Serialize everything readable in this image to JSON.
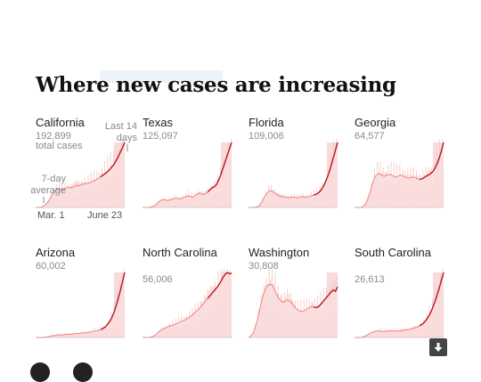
{
  "page": {
    "headline": "Where new cases are increasing",
    "annotations": {
      "last_14_days": "Last 14 days",
      "seven_day_average": "7-day average",
      "start_date": "Mar. 1",
      "end_date": "June 23",
      "total_cases": "total cases"
    },
    "colors": {
      "bars": "#f6c8c8",
      "area": "#fbe0e0",
      "last14_shade": "#efb0b0",
      "line": "#b8171b",
      "line_light": "#f08080",
      "axis": "#b0b0b0"
    },
    "icons": {
      "download": "download-icon"
    }
  },
  "chart_data": [
    {
      "type": "area",
      "state": "California",
      "total_cases": "192,899",
      "x_range": [
        "Mar. 1",
        "June 23"
      ],
      "series": [
        {
          "values": [
            0,
            0,
            0,
            0.01,
            0.03,
            0.06,
            0.1,
            0.16,
            0.22,
            0.26,
            0.28,
            0.28,
            0.27,
            0.28,
            0.3,
            0.31,
            0.3,
            0.31,
            0.33,
            0.34,
            0.33,
            0.35,
            0.36,
            0.37,
            0.37,
            0.38,
            0.4,
            0.41,
            0.43,
            0.45,
            0.47,
            0.5,
            0.52,
            0.55,
            0.58,
            0.62,
            0.66,
            0.72,
            0.78,
            0.85,
            0.92,
            1.0
          ]
        }
      ]
    },
    {
      "type": "area",
      "state": "Texas",
      "total_cases": "125,097",
      "x_range": [
        "Mar. 1",
        "June 23"
      ],
      "series": [
        {
          "values": [
            0,
            0,
            0,
            0,
            0.01,
            0.02,
            0.04,
            0.07,
            0.1,
            0.12,
            0.12,
            0.11,
            0.11,
            0.12,
            0.13,
            0.14,
            0.14,
            0.13,
            0.14,
            0.15,
            0.17,
            0.18,
            0.17,
            0.16,
            0.17,
            0.2,
            0.22,
            0.21,
            0.2,
            0.21,
            0.24,
            0.27,
            0.3,
            0.32,
            0.35,
            0.42,
            0.5,
            0.6,
            0.7,
            0.8,
            0.9,
            1.0
          ]
        }
      ]
    },
    {
      "type": "area",
      "state": "Florida",
      "total_cases": "109,006",
      "x_range": [
        "Mar. 1",
        "June 23"
      ],
      "series": [
        {
          "values": [
            0,
            0,
            0,
            0,
            0.01,
            0.03,
            0.08,
            0.14,
            0.2,
            0.24,
            0.26,
            0.25,
            0.22,
            0.2,
            0.18,
            0.17,
            0.16,
            0.16,
            0.15,
            0.15,
            0.16,
            0.16,
            0.15,
            0.15,
            0.16,
            0.17,
            0.16,
            0.16,
            0.17,
            0.18,
            0.19,
            0.2,
            0.22,
            0.25,
            0.3,
            0.36,
            0.44,
            0.53,
            0.64,
            0.76,
            0.88,
            1.0
          ]
        }
      ]
    },
    {
      "type": "area",
      "state": "Georgia",
      "total_cases": "64,577",
      "x_range": [
        "Mar. 1",
        "June 23"
      ],
      "series": [
        {
          "values": [
            0,
            0,
            0,
            0,
            0.02,
            0.05,
            0.12,
            0.22,
            0.34,
            0.44,
            0.5,
            0.52,
            0.51,
            0.49,
            0.48,
            0.5,
            0.51,
            0.5,
            0.48,
            0.47,
            0.48,
            0.5,
            0.49,
            0.47,
            0.46,
            0.45,
            0.46,
            0.47,
            0.46,
            0.44,
            0.43,
            0.44,
            0.46,
            0.48,
            0.5,
            0.52,
            0.55,
            0.6,
            0.67,
            0.76,
            0.87,
            1.0
          ]
        }
      ]
    },
    {
      "type": "area",
      "state": "Arizona",
      "total_cases": "60,002",
      "x_range": [
        "Mar. 1",
        "June 23"
      ],
      "series": [
        {
          "values": [
            0,
            0,
            0,
            0,
            0,
            0.01,
            0.01,
            0.02,
            0.03,
            0.03,
            0.04,
            0.04,
            0.04,
            0.04,
            0.05,
            0.05,
            0.05,
            0.05,
            0.06,
            0.06,
            0.06,
            0.07,
            0.07,
            0.07,
            0.08,
            0.08,
            0.09,
            0.1,
            0.1,
            0.11,
            0.12,
            0.14,
            0.16,
            0.2,
            0.24,
            0.3,
            0.38,
            0.48,
            0.6,
            0.72,
            0.86,
            1.0
          ]
        }
      ]
    },
    {
      "type": "area",
      "state": "North Carolina",
      "total_cases": "56,006",
      "x_range": [
        "Mar. 1",
        "June 23"
      ],
      "series": [
        {
          "values": [
            0,
            0,
            0,
            0,
            0.01,
            0.02,
            0.04,
            0.07,
            0.1,
            0.12,
            0.14,
            0.15,
            0.17,
            0.18,
            0.19,
            0.2,
            0.22,
            0.23,
            0.25,
            0.26,
            0.28,
            0.3,
            0.32,
            0.35,
            0.38,
            0.41,
            0.44,
            0.48,
            0.52,
            0.56,
            0.6,
            0.64,
            0.68,
            0.72,
            0.76,
            0.8,
            0.86,
            0.92,
            0.97,
            1.0,
            0.98,
            0.99
          ]
        }
      ]
    },
    {
      "type": "area",
      "state": "Washington",
      "total_cases": "30,808",
      "x_range": [
        "Mar. 1",
        "June 23"
      ],
      "series": [
        {
          "values": [
            0,
            0.02,
            0.06,
            0.14,
            0.26,
            0.4,
            0.55,
            0.68,
            0.76,
            0.8,
            0.82,
            0.8,
            0.74,
            0.66,
            0.6,
            0.56,
            0.54,
            0.56,
            0.58,
            0.56,
            0.52,
            0.48,
            0.44,
            0.42,
            0.4,
            0.4,
            0.42,
            0.44,
            0.46,
            0.48,
            0.47,
            0.46,
            0.47,
            0.5,
            0.54,
            0.58,
            0.62,
            0.66,
            0.7,
            0.73,
            0.71,
            0.78
          ]
        }
      ]
    },
    {
      "type": "area",
      "state": "South Carolina",
      "total_cases": "26,613",
      "x_range": [
        "Mar. 1",
        "June 23"
      ],
      "series": [
        {
          "values": [
            0,
            0,
            0,
            0,
            0.01,
            0.02,
            0.04,
            0.06,
            0.08,
            0.09,
            0.1,
            0.1,
            0.1,
            0.09,
            0.09,
            0.1,
            0.1,
            0.1,
            0.1,
            0.1,
            0.1,
            0.1,
            0.11,
            0.11,
            0.12,
            0.12,
            0.13,
            0.14,
            0.15,
            0.16,
            0.18,
            0.2,
            0.23,
            0.27,
            0.32,
            0.38,
            0.46,
            0.55,
            0.65,
            0.76,
            0.88,
            1.0
          ]
        }
      ]
    }
  ]
}
